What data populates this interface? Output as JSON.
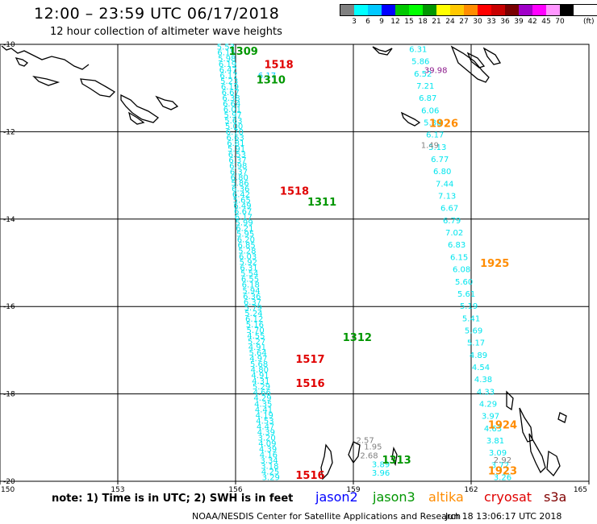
{
  "header": {
    "title": "12:00 – 23:59 UTC 06/17/2018",
    "subtitle": "12 hour collection of altimeter wave heights"
  },
  "legend": {
    "colors": [
      "#808080",
      "#00ffff",
      "#00c8ff",
      "#0000ff",
      "#00c800",
      "#00ff00",
      "#009600",
      "#ffff00",
      "#ffc800",
      "#ff8c00",
      "#ff0000",
      "#c80000",
      "#780000",
      "#a000c8",
      "#ff00ff",
      "#ff96ff",
      "#000000"
    ],
    "labels": [
      "3",
      "6",
      "9",
      "12",
      "15",
      "18",
      "21",
      "24",
      "27",
      "30",
      "33",
      "36",
      "39",
      "42",
      "45",
      "70"
    ],
    "unit": "(ft)"
  },
  "map": {
    "lon_ticks": [
      "150",
      "153",
      "156",
      "159",
      "162",
      "165"
    ],
    "lat_ticks": [
      "-10",
      "-12",
      "-14",
      "-16",
      "-18",
      "-20"
    ],
    "extent": {
      "lon": [
        150,
        165
      ],
      "lat": [
        -20,
        -10
      ]
    },
    "grid": true
  },
  "passes": [
    {
      "time": "1309",
      "satellite": "jason3",
      "lon": 156.2,
      "lat": -10.15
    },
    {
      "time": "1518",
      "satellite": "cryosat",
      "lon": 157.1,
      "lat": -10.45
    },
    {
      "time": "1310",
      "satellite": "jason3",
      "lon": 156.9,
      "lat": -10.8
    },
    {
      "time": "1926",
      "satellite": "altika",
      "lon": 161.3,
      "lat": -11.8
    },
    {
      "time": "1518",
      "satellite": "cryosat",
      "lon": 157.5,
      "lat": -13.35
    },
    {
      "time": "1311",
      "satellite": "jason3",
      "lon": 158.2,
      "lat": -13.6
    },
    {
      "time": "1925",
      "satellite": "altika",
      "lon": 162.6,
      "lat": -15.0
    },
    {
      "time": "1312",
      "satellite": "jason3",
      "lon": 159.1,
      "lat": -16.7
    },
    {
      "time": "1517",
      "satellite": "cryosat",
      "lon": 157.9,
      "lat": -17.2
    },
    {
      "time": "1516",
      "satellite": "cryosat",
      "lon": 157.9,
      "lat": -17.75
    },
    {
      "time": "1924",
      "satellite": "altika",
      "lon": 162.8,
      "lat": -18.7
    },
    {
      "time": "1313",
      "satellite": "jason3",
      "lon": 160.1,
      "lat": -19.5
    },
    {
      "time": "1923",
      "satellite": "altika",
      "lon": 162.8,
      "lat": -19.75
    },
    {
      "time": "1516",
      "satellite": "cryosat",
      "lon": 157.9,
      "lat": -19.85
    }
  ],
  "track_a": {
    "label_color": "#00e5ee",
    "values": [
      "5.53",
      "6.15",
      "5.98",
      "6.19",
      "6.47",
      "6.17",
      "5.23",
      "6.19",
      "6.67",
      "6.38",
      "6.64",
      "6.01",
      "5.97",
      "5.63",
      "5.00",
      "6.70",
      "6.63",
      "6.81",
      "5.91",
      "6.53",
      "6.37",
      "6.98",
      "6.37",
      "6.80",
      "5.86",
      "6.36",
      "6.42",
      "5.65",
      "6.49",
      "6.67",
      "6.17",
      "5.99",
      "6.21",
      "5.95",
      "6.20",
      "6.85",
      "5.28",
      "6.03",
      "5.92",
      "6.31",
      "5.54",
      "6.55",
      "6.18",
      "5.94",
      "6.36",
      "6.37",
      "5.79",
      "5.24",
      "6.12",
      "5.16",
      "5.70",
      "4.55",
      "5.27",
      "4.91",
      "5.64",
      "4.97",
      "5.68",
      "4.80",
      "4.91",
      "4.31",
      "5.29",
      "4.66",
      "4.29",
      "4.35",
      "4.41",
      "4.19",
      "4.53",
      "4.47",
      "4.39",
      "3.20",
      "4.09",
      "4.39",
      "4.16",
      "3.34",
      "3.18",
      "4.25",
      "3.29"
    ]
  },
  "track_b": {
    "label_color": "#00e5ee",
    "values": [
      "6.31",
      "5.86",
      "6.52",
      "7.21",
      "6.87",
      "6.06",
      "5.38",
      "6.17",
      "5.13",
      "6.77",
      "6.80",
      "7.44",
      "7.13",
      "6.67",
      "6.79",
      "7.02",
      "6.83",
      "6.15",
      "6.08",
      "5.60",
      "5.61",
      "5.19",
      "5.41",
      "5.69",
      "5.17",
      "4.89",
      "4.54",
      "4.38",
      "4.33",
      "4.29",
      "3.97",
      "4.63",
      "3.81",
      "3.09",
      "3.72",
      "3.26"
    ]
  },
  "special_values": [
    {
      "value": "39.98",
      "color": "#8b1a8b",
      "lon": 161.1,
      "lat": -10.58
    },
    {
      "value": "6.17",
      "color": "#00c8ff",
      "lon": 156.8,
      "lat": -10.7
    },
    {
      "value": "1.49",
      "color": "#808080",
      "lon": 160.95,
      "lat": -12.3
    },
    {
      "value": "2.57",
      "color": "#808080",
      "lon": 159.3,
      "lat": -19.05
    },
    {
      "value": "1.95",
      "color": "#808080",
      "lon": 159.5,
      "lat": -19.2
    },
    {
      "value": "2.68",
      "color": "#808080",
      "lon": 159.4,
      "lat": -19.4
    },
    {
      "value": "3.89",
      "color": "#00e5ee",
      "lon": 159.7,
      "lat": -19.6
    },
    {
      "value": "3.96",
      "color": "#00e5ee",
      "lon": 159.7,
      "lat": -19.8
    },
    {
      "value": "2.92",
      "color": "#808080",
      "lon": 162.8,
      "lat": -19.5
    }
  ],
  "satellites": {
    "jason2": {
      "label": "jason2",
      "color": "#0000ff"
    },
    "jason3": {
      "label": "jason3",
      "color": "#009600"
    },
    "altika": {
      "label": "altika",
      "color": "#ff8c00"
    },
    "cryosat": {
      "label": "cryosat",
      "color": "#e00000"
    },
    "s3a": {
      "label": "s3a",
      "color": "#800000"
    }
  },
  "footer": {
    "note": "note:  1) Time is in UTC;  2) SWH is in feet",
    "credit": "NOAA/NESDIS Center for Satellite Applications and Research",
    "timestamp": "Jun 18 13:06:17 UTC 2018"
  }
}
